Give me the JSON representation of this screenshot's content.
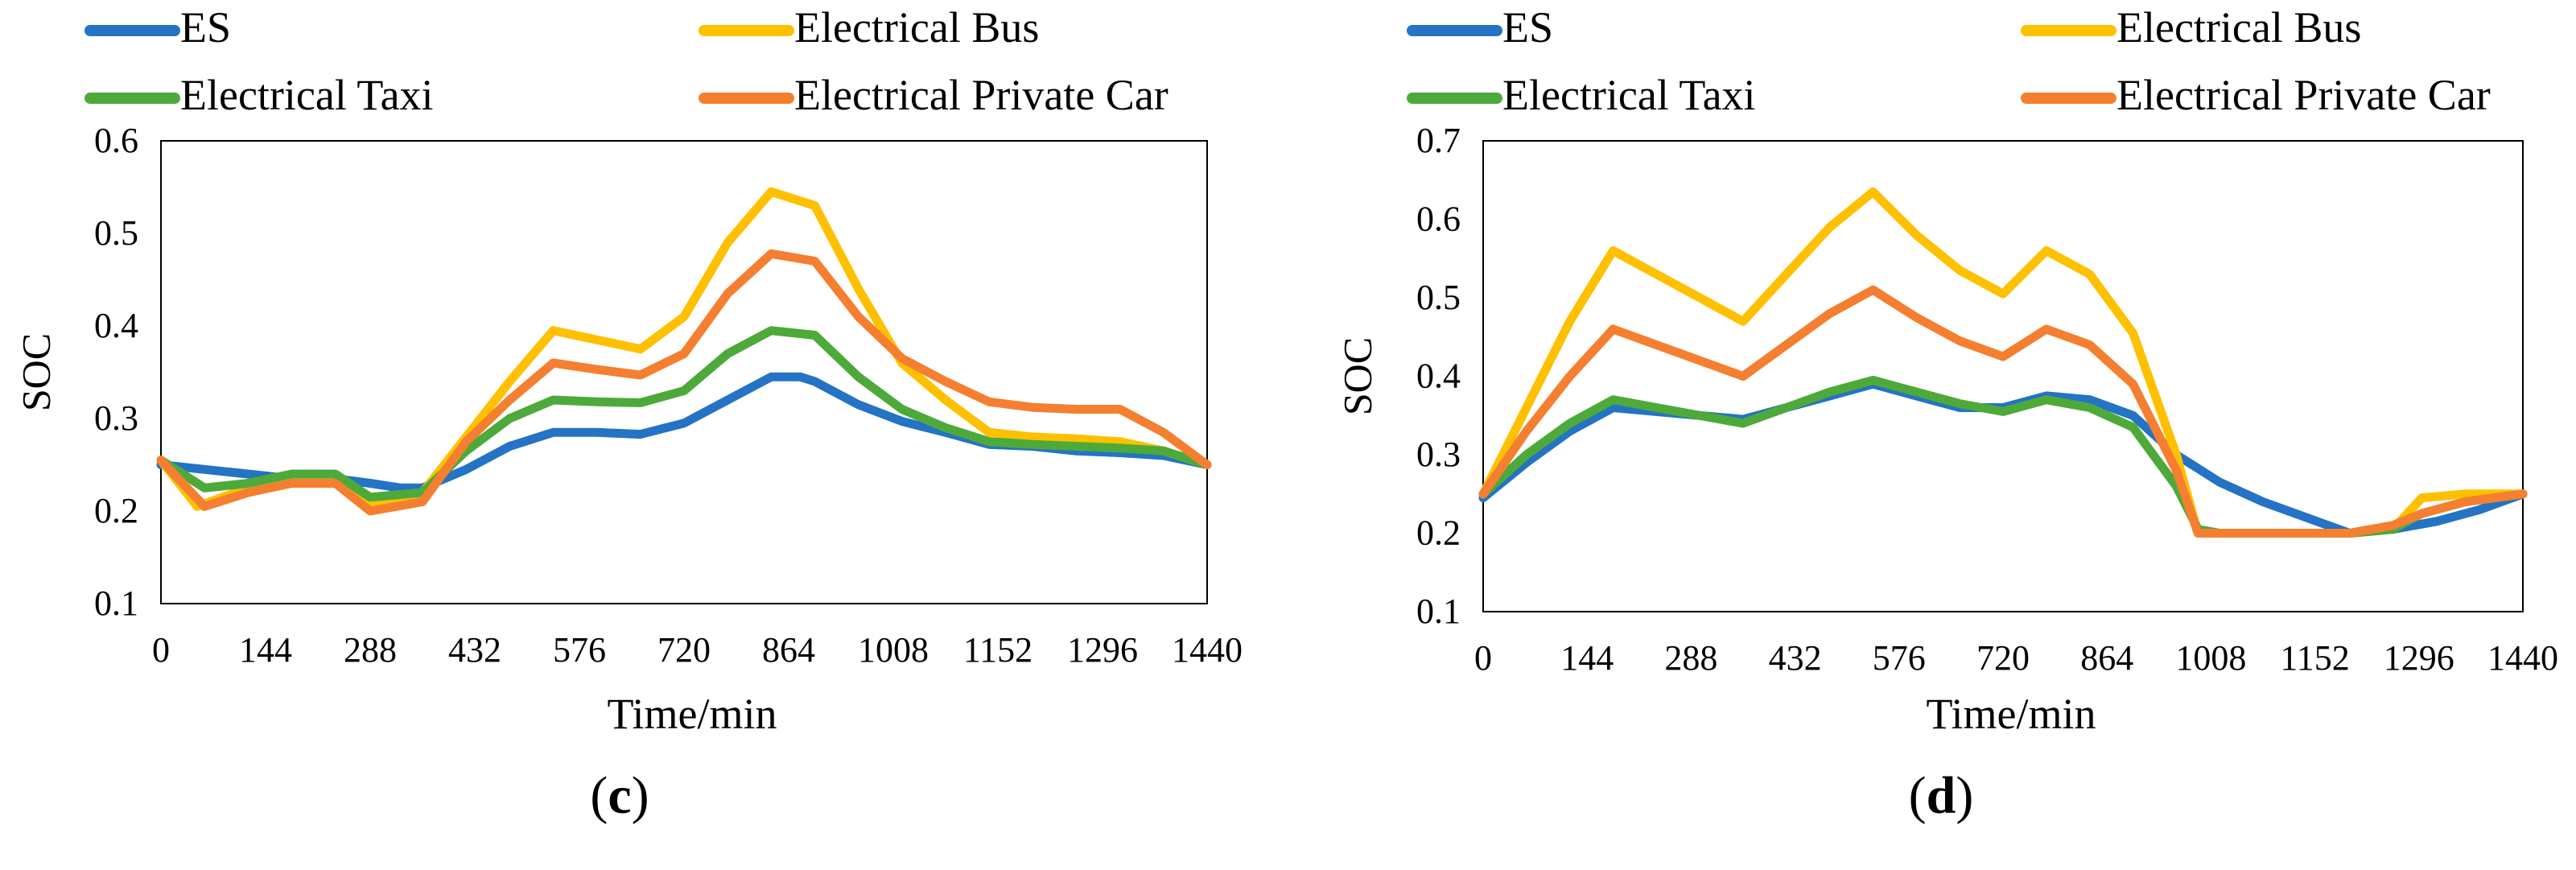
{
  "chart_data": [
    {
      "type": "line",
      "panel_label": "c",
      "xlabel": "Time/min",
      "ylabel": "SOC",
      "xlim": [
        0,
        1440
      ],
      "ylim": [
        0.1,
        0.6
      ],
      "xticks": [
        0,
        144,
        288,
        432,
        576,
        720,
        864,
        1008,
        1152,
        1296,
        1440
      ],
      "yticks": [
        0.1,
        0.2,
        0.3,
        0.4,
        0.5,
        0.6
      ],
      "legend": [
        "ES",
        "Electrical Bus",
        "Electrical Taxi",
        "Electrical Private Car"
      ],
      "series": [
        {
          "name": "ES",
          "color": "#2473C4",
          "x": [
            0,
            60,
            120,
            180,
            240,
            288,
            330,
            360,
            420,
            480,
            540,
            600,
            660,
            720,
            780,
            840,
            880,
            900,
            960,
            1020,
            1080,
            1140,
            1200,
            1260,
            1320,
            1380,
            1440
          ],
          "y": [
            0.25,
            0.245,
            0.24,
            0.235,
            0.235,
            0.23,
            0.225,
            0.225,
            0.245,
            0.27,
            0.285,
            0.285,
            0.283,
            0.295,
            0.32,
            0.345,
            0.345,
            0.34,
            0.315,
            0.297,
            0.285,
            0.272,
            0.27,
            0.265,
            0.263,
            0.26,
            0.25
          ]
        },
        {
          "name": "Electrical Bus",
          "color": "#FFC000",
          "x": [
            0,
            50,
            120,
            180,
            240,
            288,
            360,
            420,
            480,
            540,
            600,
            660,
            720,
            780,
            840,
            900,
            960,
            1020,
            1080,
            1140,
            1200,
            1260,
            1320,
            1380,
            1440
          ],
          "y": [
            0.255,
            0.205,
            0.225,
            0.235,
            0.235,
            0.205,
            0.22,
            0.28,
            0.34,
            0.395,
            0.385,
            0.375,
            0.41,
            0.49,
            0.545,
            0.53,
            0.44,
            0.36,
            0.32,
            0.285,
            0.28,
            0.278,
            0.275,
            0.265,
            0.25
          ]
        },
        {
          "name": "Electrical Taxi",
          "color": "#4DAA3A",
          "x": [
            0,
            60,
            120,
            180,
            240,
            288,
            360,
            420,
            480,
            540,
            600,
            660,
            720,
            780,
            840,
            900,
            960,
            1020,
            1080,
            1140,
            1200,
            1260,
            1320,
            1380,
            1440
          ],
          "y": [
            0.255,
            0.225,
            0.23,
            0.24,
            0.24,
            0.215,
            0.22,
            0.265,
            0.3,
            0.32,
            0.318,
            0.317,
            0.33,
            0.37,
            0.395,
            0.39,
            0.345,
            0.31,
            0.29,
            0.275,
            0.272,
            0.27,
            0.268,
            0.265,
            0.25
          ]
        },
        {
          "name": "Electrical Private Car",
          "color": "#F57F30",
          "x": [
            0,
            60,
            120,
            180,
            240,
            288,
            360,
            420,
            480,
            540,
            600,
            660,
            720,
            780,
            840,
            900,
            960,
            1020,
            1080,
            1140,
            1200,
            1260,
            1320,
            1380,
            1440
          ],
          "y": [
            0.255,
            0.205,
            0.22,
            0.23,
            0.23,
            0.2,
            0.21,
            0.275,
            0.32,
            0.36,
            0.353,
            0.347,
            0.37,
            0.435,
            0.478,
            0.47,
            0.41,
            0.365,
            0.34,
            0.318,
            0.312,
            0.31,
            0.31,
            0.285,
            0.25
          ]
        }
      ]
    },
    {
      "type": "line",
      "panel_label": "d",
      "xlabel": "Time/min",
      "ylabel": "SOC",
      "xlim": [
        0,
        1440
      ],
      "ylim": [
        0.1,
        0.7
      ],
      "xticks": [
        0,
        144,
        288,
        432,
        576,
        720,
        864,
        1008,
        1152,
        1296,
        1440
      ],
      "yticks": [
        0.1,
        0.2,
        0.3,
        0.4,
        0.5,
        0.6,
        0.7
      ],
      "legend": [
        "ES",
        "Electrical Bus",
        "Electrical Taxi",
        "Electrical Private Car"
      ],
      "series": [
        {
          "name": "ES",
          "color": "#2473C4",
          "x": [
            0,
            60,
            120,
            180,
            240,
            300,
            360,
            420,
            480,
            540,
            600,
            660,
            720,
            780,
            840,
            900,
            960,
            1020,
            1080,
            1140,
            1200,
            1260,
            1320,
            1380,
            1440
          ],
          "y": [
            0.245,
            0.29,
            0.33,
            0.36,
            0.355,
            0.35,
            0.345,
            0.36,
            0.375,
            0.39,
            0.375,
            0.36,
            0.36,
            0.375,
            0.37,
            0.35,
            0.3,
            0.265,
            0.24,
            0.22,
            0.2,
            0.205,
            0.215,
            0.23,
            0.25
          ]
        },
        {
          "name": "Electrical Bus",
          "color": "#FFC000",
          "x": [
            0,
            60,
            120,
            180,
            240,
            300,
            360,
            420,
            480,
            540,
            600,
            660,
            720,
            780,
            840,
            900,
            960,
            990,
            1020,
            1080,
            1140,
            1200,
            1260,
            1300,
            1360,
            1440
          ],
          "y": [
            0.25,
            0.36,
            0.47,
            0.56,
            0.53,
            0.5,
            0.47,
            0.53,
            0.59,
            0.635,
            0.58,
            0.535,
            0.505,
            0.56,
            0.53,
            0.455,
            0.3,
            0.2,
            0.2,
            0.2,
            0.2,
            0.2,
            0.205,
            0.245,
            0.25,
            0.25
          ]
        },
        {
          "name": "Electrical Taxi",
          "color": "#4DAA3A",
          "x": [
            0,
            60,
            120,
            180,
            240,
            300,
            360,
            420,
            480,
            540,
            600,
            660,
            720,
            780,
            840,
            900,
            960,
            990,
            1020,
            1080,
            1140,
            1200,
            1260,
            1300,
            1360,
            1440
          ],
          "y": [
            0.25,
            0.3,
            0.34,
            0.37,
            0.36,
            0.35,
            0.34,
            0.36,
            0.38,
            0.395,
            0.38,
            0.365,
            0.355,
            0.37,
            0.36,
            0.335,
            0.26,
            0.205,
            0.2,
            0.2,
            0.2,
            0.2,
            0.205,
            0.225,
            0.24,
            0.25
          ]
        },
        {
          "name": "Electrical Private Car",
          "color": "#F57F30",
          "x": [
            0,
            60,
            120,
            180,
            240,
            300,
            360,
            420,
            480,
            540,
            600,
            660,
            720,
            780,
            840,
            900,
            960,
            990,
            1020,
            1080,
            1140,
            1200,
            1260,
            1300,
            1360,
            1440
          ],
          "y": [
            0.25,
            0.33,
            0.4,
            0.46,
            0.44,
            0.42,
            0.4,
            0.44,
            0.48,
            0.51,
            0.475,
            0.445,
            0.425,
            0.46,
            0.44,
            0.39,
            0.28,
            0.2,
            0.2,
            0.2,
            0.2,
            0.2,
            0.21,
            0.225,
            0.24,
            0.25
          ]
        }
      ]
    }
  ]
}
